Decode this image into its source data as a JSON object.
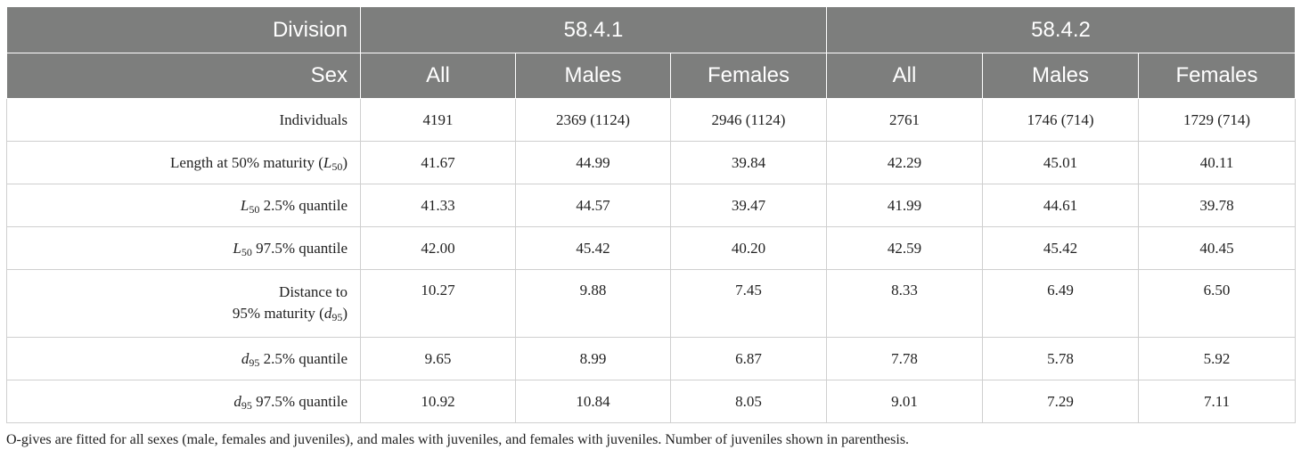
{
  "header": {
    "division_label": "Division",
    "division_a": "58.4.1",
    "division_b": "58.4.2",
    "sex_label": "Sex",
    "sex_cols": [
      "All",
      "Males",
      "Females",
      "All",
      "Males",
      "Females"
    ]
  },
  "rows": {
    "individuals": {
      "label": "Individuals",
      "values": [
        "4191",
        "2369 (1124)",
        "2946 (1124)",
        "2761",
        "1746 (714)",
        "1729 (714)"
      ]
    },
    "l50": {
      "label": "Length at 50% maturity (",
      "sym": "L",
      "sub": "50",
      "label_end": ")",
      "values": [
        "41.67",
        "44.99",
        "39.84",
        "42.29",
        "45.01",
        "40.11"
      ]
    },
    "l50_low": {
      "sym": "L",
      "sub": "50",
      "label": " 2.5% quantile",
      "values": [
        "41.33",
        "44.57",
        "39.47",
        "41.99",
        "44.61",
        "39.78"
      ]
    },
    "l50_high": {
      "sym": "L",
      "sub": "50",
      "label": " 97.5% quantile",
      "values": [
        "42.00",
        "45.42",
        "40.20",
        "42.59",
        "45.42",
        "40.45"
      ]
    },
    "d95": {
      "label_line1": "Distance to",
      "label_line2": "95% maturity (",
      "sym": "d",
      "sub": "95",
      "label_end": ")",
      "values": [
        "10.27",
        "9.88",
        "7.45",
        "8.33",
        "6.49",
        "6.50"
      ]
    },
    "d95_low": {
      "sym": "d",
      "sub": "95",
      "label": " 2.5% quantile",
      "values": [
        "9.65",
        "8.99",
        "6.87",
        "7.78",
        "5.78",
        "5.92"
      ]
    },
    "d95_high": {
      "sym": "d",
      "sub": "95",
      "label": " 97.5% quantile",
      "values": [
        "10.92",
        "10.84",
        "8.05",
        "9.01",
        "7.29",
        "7.11"
      ]
    }
  },
  "footnote": "O-gives are fitted for all sexes (male, females and juveniles), and males with juveniles, and females with juveniles. Number of juveniles shown in parenthesis."
}
